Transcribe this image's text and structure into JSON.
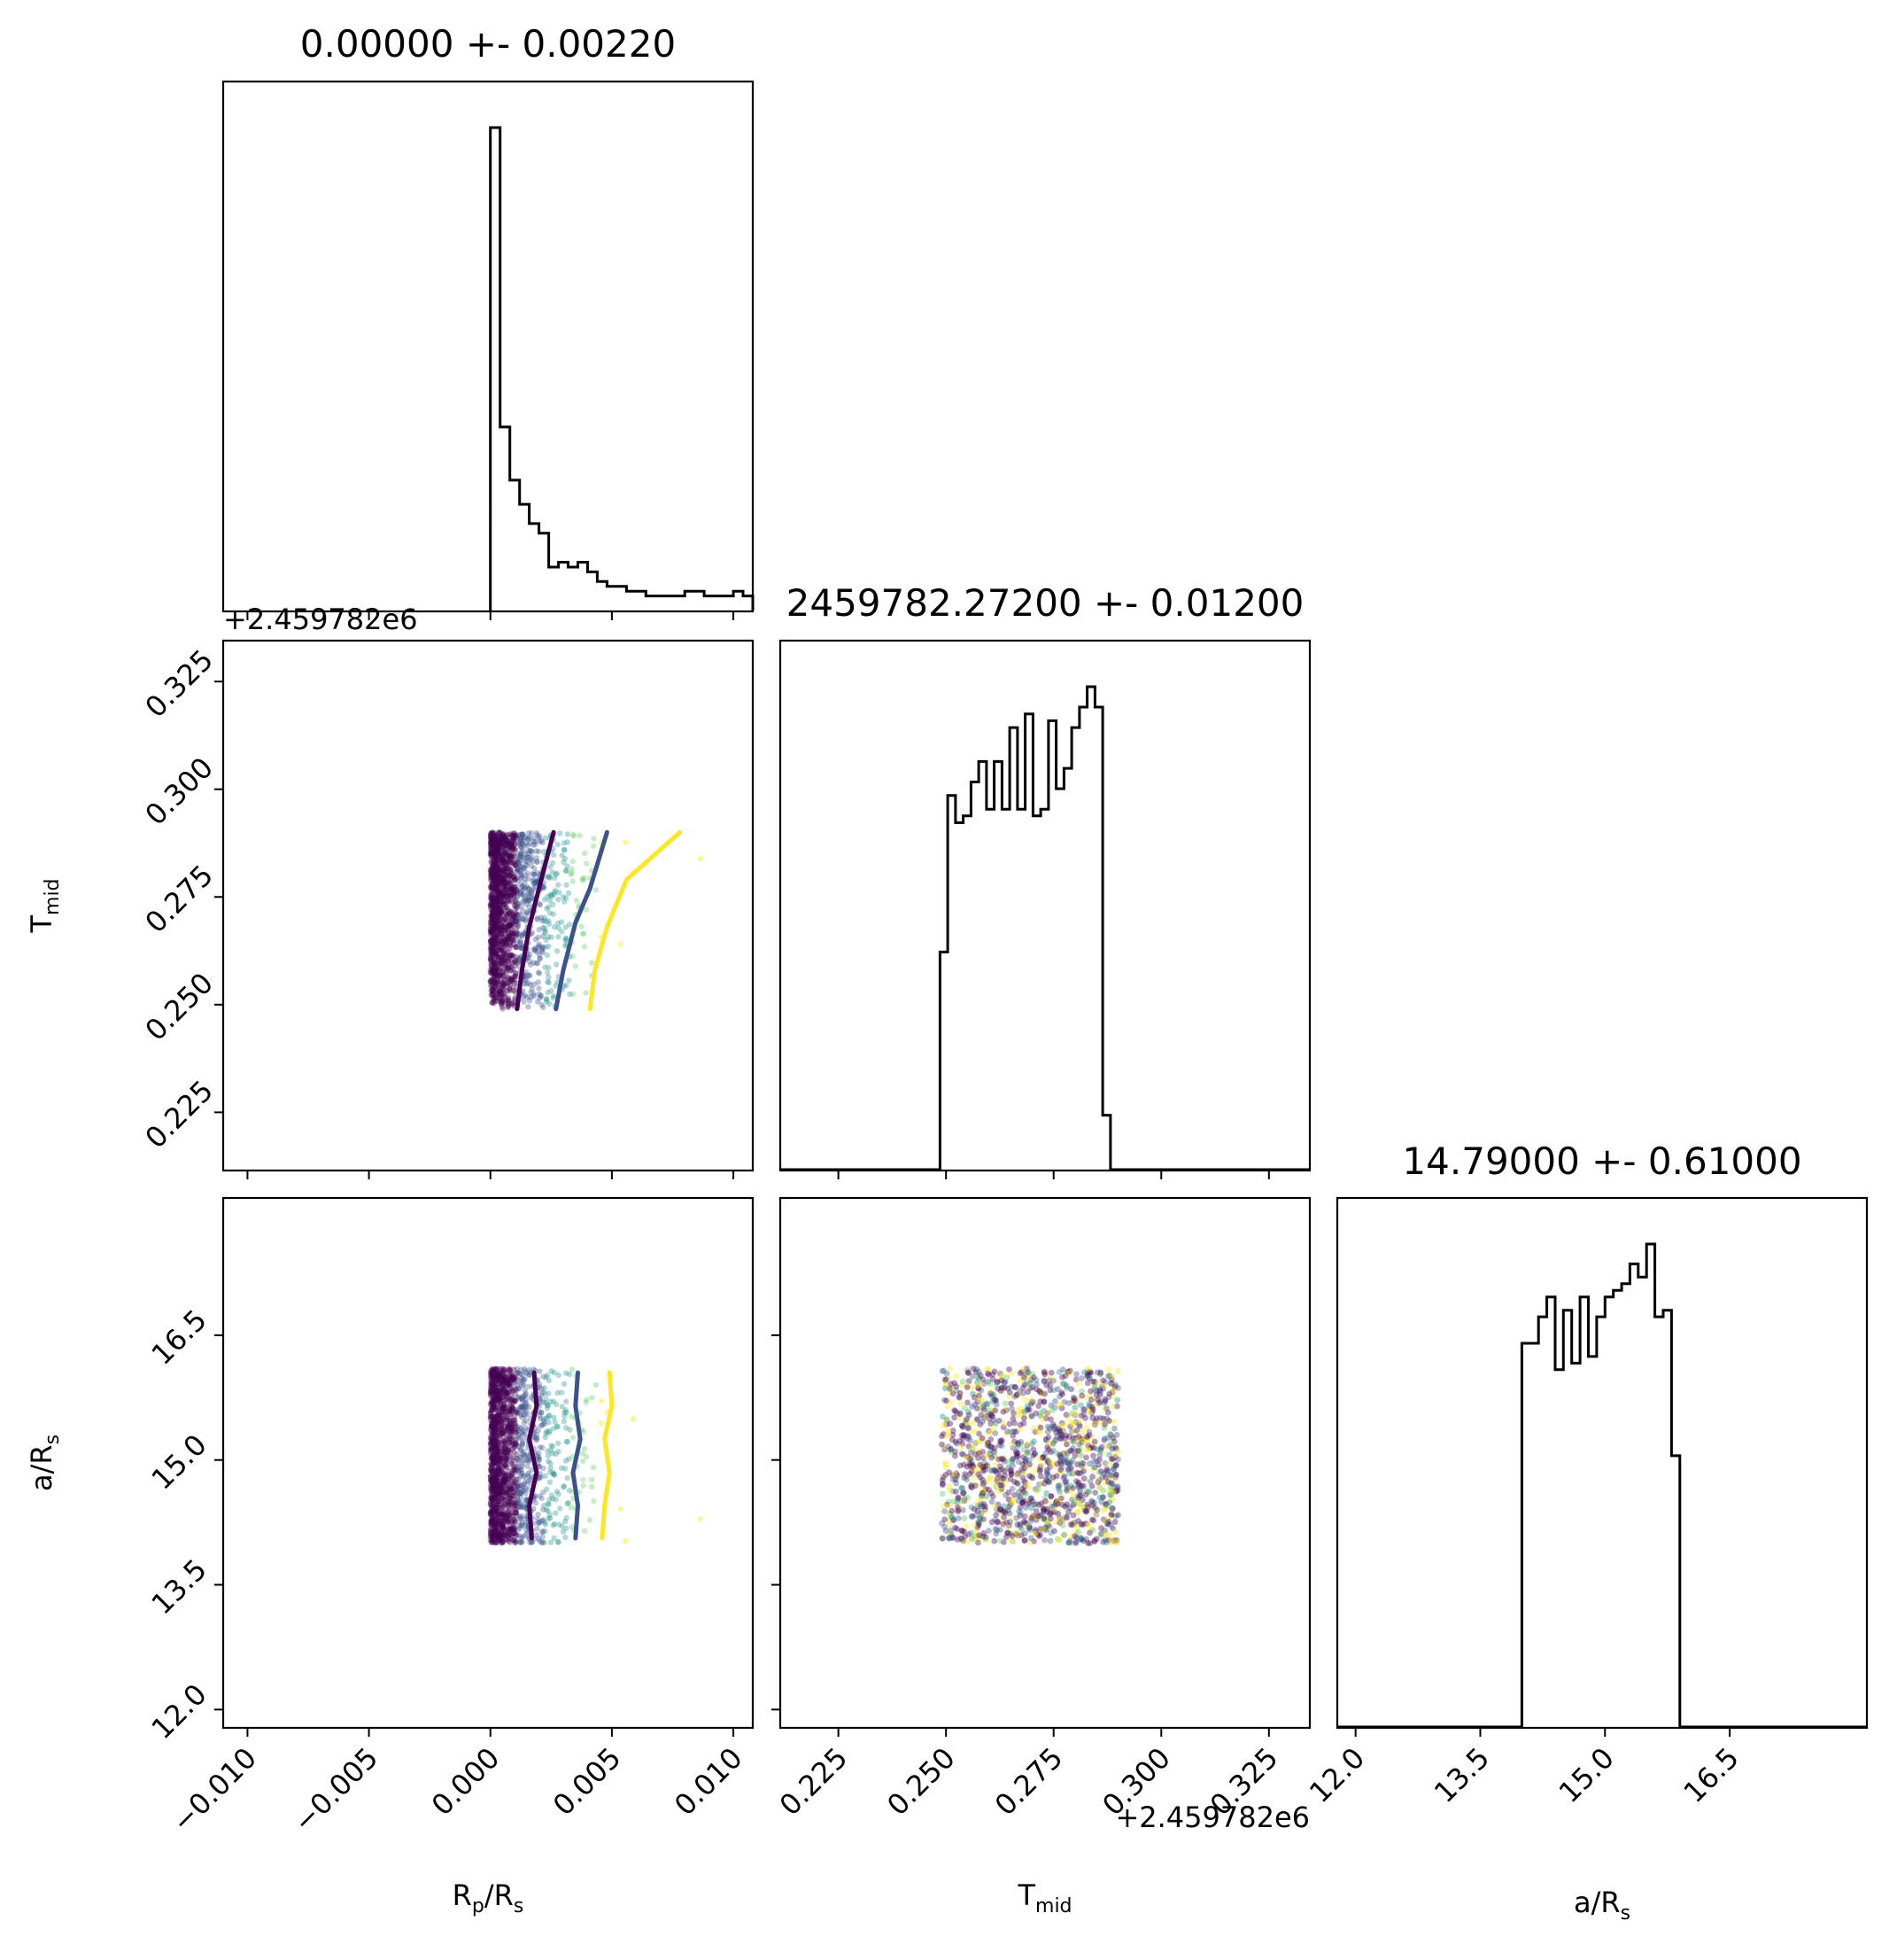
{
  "chart_data": {
    "type": "corner",
    "parameters": [
      {
        "key": "rp_rs",
        "label_main": "R",
        "label_sub": "p",
        "label_rest": "/R",
        "label_sub2": "s"
      },
      {
        "key": "tmid",
        "label_main": "T",
        "label_sub": "mid",
        "label_rest": "",
        "label_sub2": ""
      },
      {
        "key": "a_rs",
        "label_main": "a/R",
        "label_sub": "s",
        "label_rest": "",
        "label_sub2": ""
      }
    ],
    "titles": {
      "rp_rs": "0.00000 +- 0.00220",
      "tmid": "2459782.27200 +- 0.01200",
      "a_rs": "14.79000 +- 0.61000"
    },
    "offset_label": "+2.459782e6",
    "ranges": {
      "rp_rs": [
        -0.011,
        0.0108
      ],
      "tmid": [
        0.2115,
        0.3345
      ],
      "a_rs": [
        11.78,
        18.15
      ]
    },
    "ticks": {
      "rp_rs": {
        "values": [
          -0.01,
          -0.005,
          0.0,
          0.005,
          0.01
        ],
        "labels": [
          "−0.010",
          "−0.005",
          "0.000",
          "0.005",
          "0.010"
        ]
      },
      "tmid": {
        "values": [
          0.225,
          0.25,
          0.275,
          0.3,
          0.325
        ],
        "labels": [
          "0.225",
          "0.250",
          "0.275",
          "0.300",
          "0.325"
        ]
      },
      "a_rs": {
        "values": [
          12.0,
          13.5,
          15.0,
          16.5
        ],
        "labels": [
          "12.0",
          "13.5",
          "15.0",
          "16.5"
        ]
      }
    },
    "hist_rp_rs": {
      "edges": [
        0.0,
        0.0004,
        0.0008,
        0.0012,
        0.0016,
        0.002,
        0.0024,
        0.0028,
        0.0032,
        0.0036,
        0.004,
        0.0044,
        0.0048,
        0.0052,
        0.0056,
        0.006,
        0.0064,
        0.0068,
        0.0072,
        0.0076,
        0.008,
        0.0084,
        0.0088,
        0.0092,
        0.0096,
        0.01,
        0.0104,
        0.0108
      ],
      "counts": [
        100,
        38,
        27,
        22,
        18,
        16,
        9,
        10,
        9,
        10,
        8,
        6,
        5,
        5,
        4,
        4,
        3,
        3,
        3,
        3,
        4,
        4,
        3,
        3,
        3,
        4,
        3
      ]
    },
    "hist_tmid": {
      "edges": [
        0.2115,
        0.2486,
        0.2504,
        0.2522,
        0.254,
        0.2558,
        0.2576,
        0.2594,
        0.2612,
        0.263,
        0.2648,
        0.2666,
        0.2684,
        0.2702,
        0.272,
        0.2738,
        0.2756,
        0.2774,
        0.2792,
        0.281,
        0.2828,
        0.2846,
        0.2864,
        0.2882,
        0.29,
        0.3345
      ],
      "counts": [
        0,
        32,
        55,
        51,
        52,
        57,
        60,
        53,
        60,
        53,
        65,
        53,
        67,
        52,
        53,
        66,
        56,
        59,
        65,
        68,
        71,
        68,
        8,
        0,
        0
      ]
    },
    "hist_a_rs": {
      "edges": [
        11.78,
        14.0,
        14.1,
        14.2,
        14.3,
        14.4,
        14.5,
        14.6,
        14.7,
        14.8,
        14.9,
        15.0,
        15.1,
        15.2,
        15.3,
        15.4,
        15.5,
        15.6,
        15.7,
        15.8,
        15.9,
        16.0,
        16.1,
        18.15
      ],
      "counts": [
        0,
        58,
        58,
        62,
        65,
        54,
        63,
        55,
        65,
        56,
        62,
        65,
        66,
        67,
        70,
        68,
        73,
        62,
        63,
        41,
        0,
        0,
        0
      ]
    },
    "scatter": {
      "n_points": 1700,
      "rp_rs_min": 0.0,
      "rp_rs_max": 0.0108,
      "tmid_range": [
        0.249,
        0.29
      ],
      "a_rs_range": [
        14.0,
        16.1
      ],
      "colormap": [
        "#440154",
        "#3b528b",
        "#21918c",
        "#5ec962",
        "#fde725"
      ]
    },
    "contours_rp_tmid": [
      {
        "color": "#440154",
        "points": [
          [
            0.0011,
            0.249
          ],
          [
            0.0013,
            0.258
          ],
          [
            0.0016,
            0.268
          ],
          [
            0.002,
            0.277
          ],
          [
            0.0026,
            0.29
          ]
        ]
      },
      {
        "color": "#3b528b",
        "points": [
          [
            0.0027,
            0.249
          ],
          [
            0.003,
            0.258
          ],
          [
            0.0035,
            0.269
          ],
          [
            0.0041,
            0.277
          ],
          [
            0.0048,
            0.29
          ]
        ]
      },
      {
        "color": "#fde725",
        "points": [
          [
            0.0041,
            0.249
          ],
          [
            0.0043,
            0.258
          ],
          [
            0.0048,
            0.268
          ],
          [
            0.0056,
            0.279
          ],
          [
            0.0078,
            0.29
          ]
        ]
      }
    ],
    "contours_rp_ars": [
      {
        "color": "#440154",
        "points": [
          [
            0.0017,
            14.06
          ],
          [
            0.0016,
            14.45
          ],
          [
            0.0019,
            14.85
          ],
          [
            0.0016,
            15.25
          ],
          [
            0.0019,
            15.65
          ],
          [
            0.0018,
            16.05
          ]
        ]
      },
      {
        "color": "#3b528b",
        "points": [
          [
            0.0035,
            14.06
          ],
          [
            0.0036,
            14.45
          ],
          [
            0.0034,
            14.85
          ],
          [
            0.0037,
            15.25
          ],
          [
            0.0035,
            15.65
          ],
          [
            0.0036,
            16.05
          ]
        ]
      },
      {
        "color": "#fde725",
        "points": [
          [
            0.0046,
            14.06
          ],
          [
            0.0047,
            14.45
          ],
          [
            0.0049,
            14.85
          ],
          [
            0.0047,
            15.25
          ],
          [
            0.005,
            15.65
          ],
          [
            0.0049,
            16.05
          ]
        ]
      }
    ]
  }
}
